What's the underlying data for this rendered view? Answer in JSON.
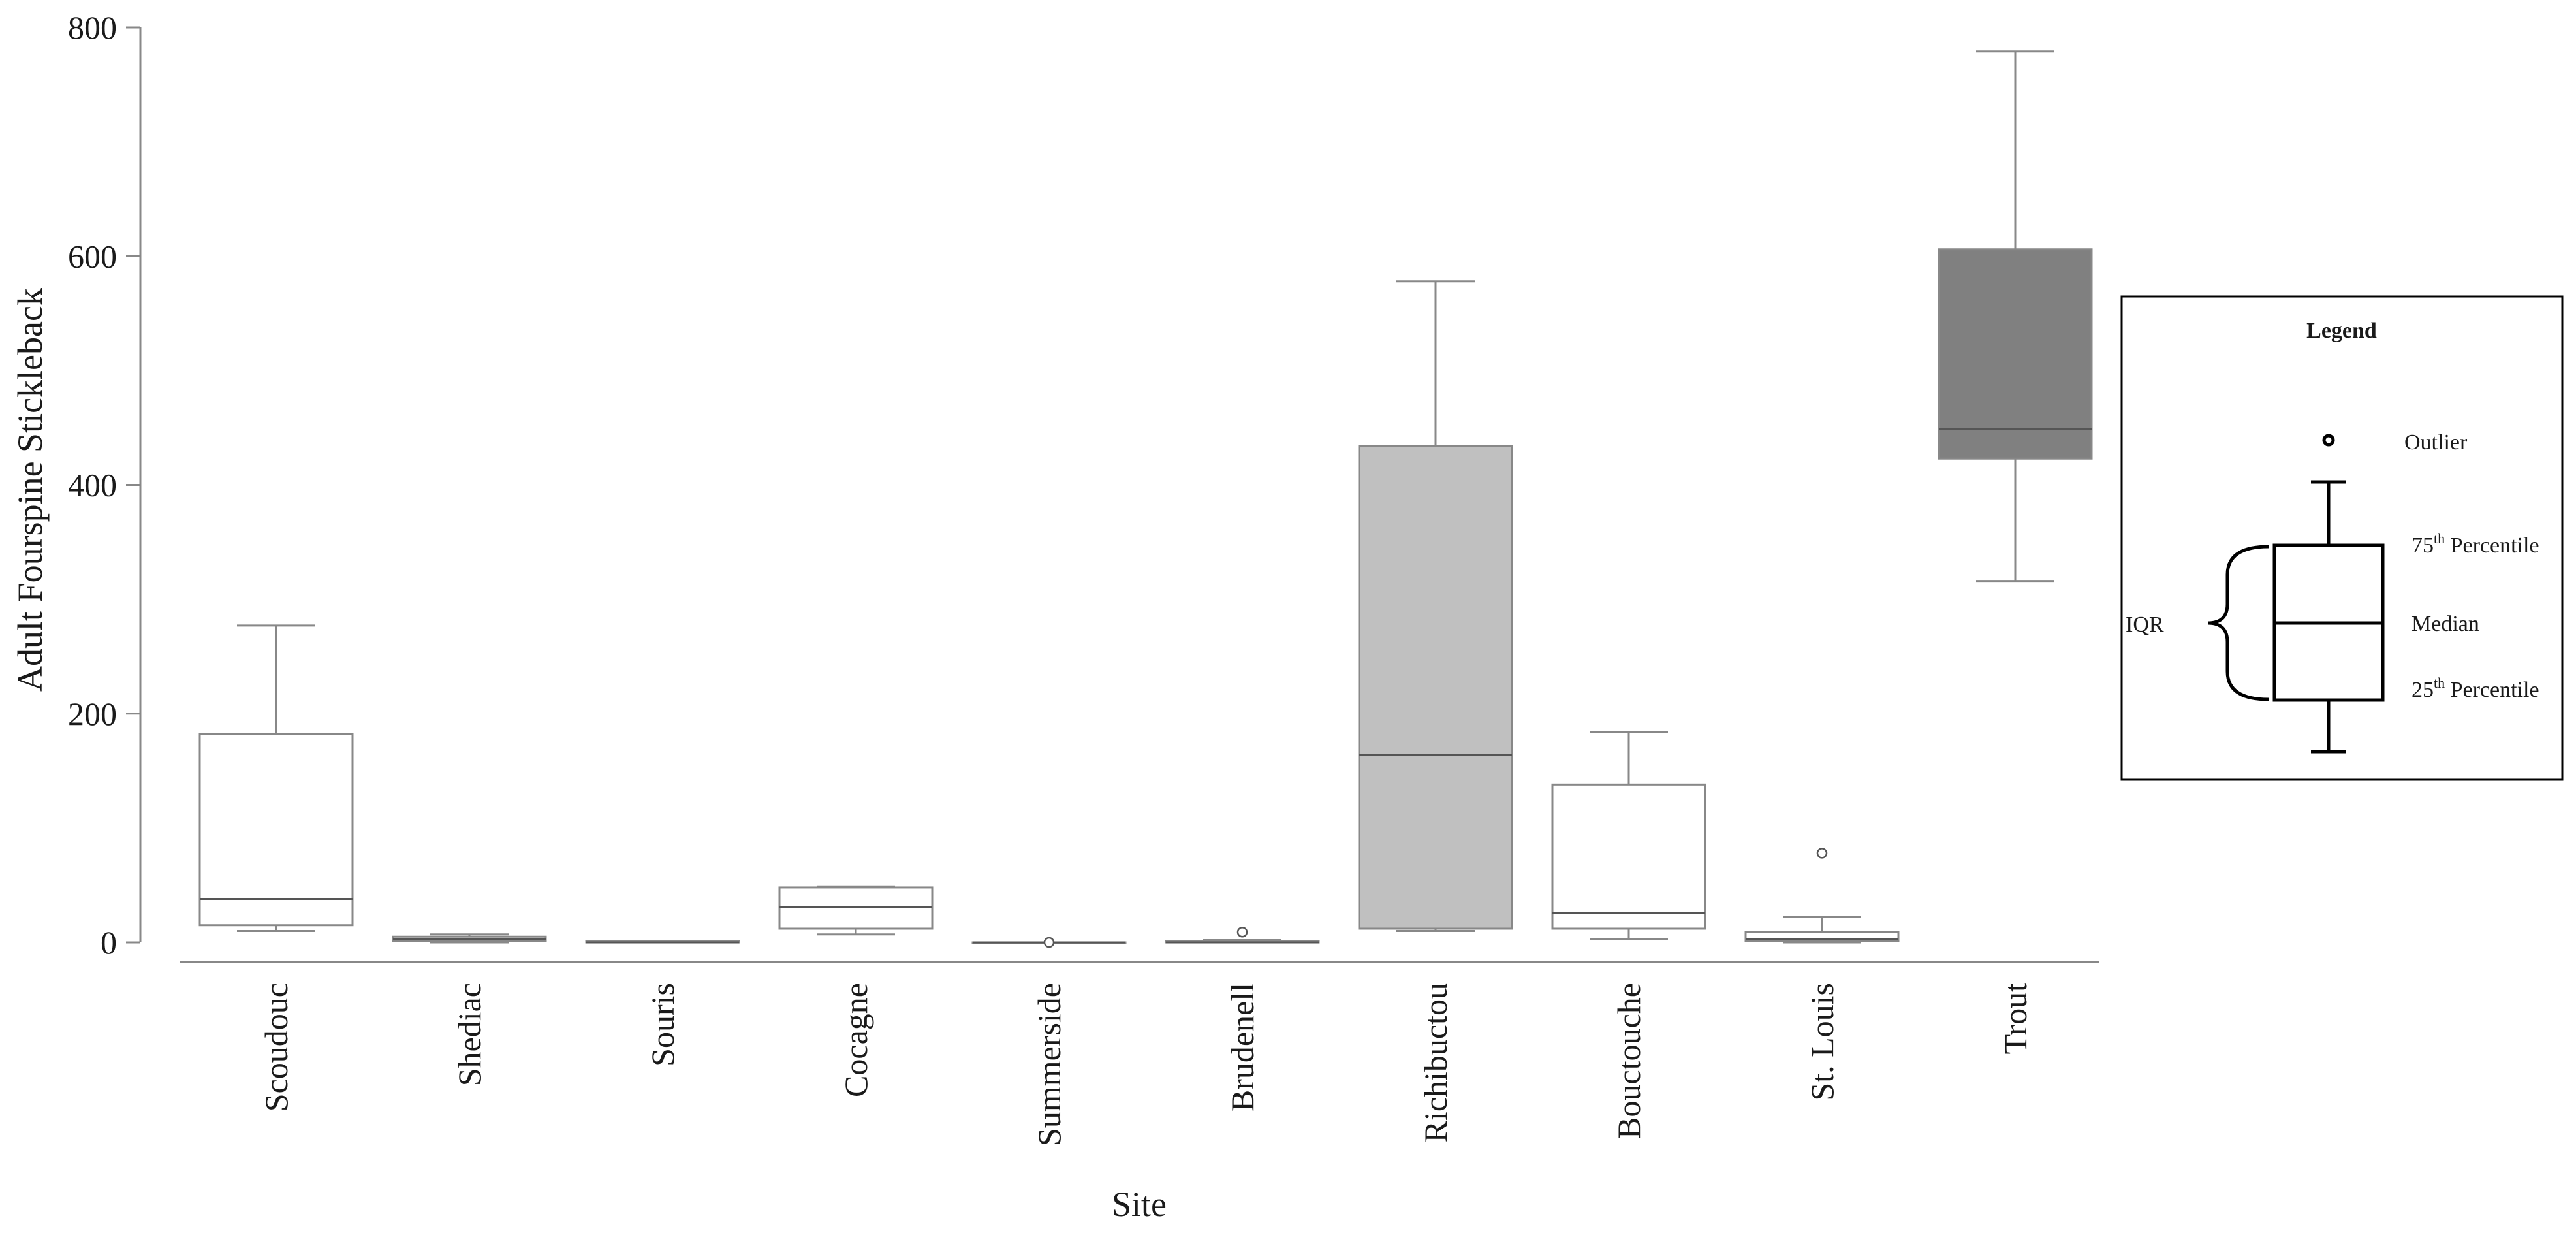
{
  "chart_data": {
    "type": "box",
    "xlabel": "Site",
    "ylabel": "Adult Fourspine Stickleback",
    "ylim": [
      0,
      800
    ],
    "yticks": [
      0,
      200,
      400,
      600,
      800
    ],
    "grid": false,
    "legend_position": "right",
    "categories": [
      "Scoudouc",
      "Shediac",
      "Souris",
      "Cocagne",
      "Summerside",
      "Brudenell",
      "Richibuctou",
      "Bouctouche",
      "St. Louis",
      "Trout"
    ],
    "boxes": [
      {
        "category": "Scoudouc",
        "min": 10,
        "q1": 15,
        "median": 38,
        "q3": 182,
        "max": 277,
        "outliers": [],
        "fill": "#ffffff"
      },
      {
        "category": "Shediac",
        "min": 0,
        "q1": 1,
        "median": 3,
        "q3": 5,
        "max": 7,
        "outliers": [],
        "fill": "#ffffff"
      },
      {
        "category": "Souris",
        "min": 0,
        "q1": 0,
        "median": 0,
        "q3": 1,
        "max": 1,
        "outliers": [],
        "fill": "#ffffff"
      },
      {
        "category": "Cocagne",
        "min": 7,
        "q1": 12,
        "median": 31,
        "q3": 48,
        "max": 49,
        "outliers": [],
        "fill": "#ffffff"
      },
      {
        "category": "Summerside",
        "min": 0,
        "q1": 0,
        "median": 0,
        "q3": 0,
        "max": 0,
        "outliers": [
          0
        ],
        "fill": "#ffffff"
      },
      {
        "category": "Brudenell",
        "min": 0,
        "q1": 0,
        "median": 0,
        "q3": 1,
        "max": 2,
        "outliers": [
          9
        ],
        "fill": "#ffffff"
      },
      {
        "category": "Richibuctou",
        "min": 10,
        "q1": 12,
        "median": 164,
        "q3": 434,
        "max": 578,
        "outliers": [],
        "fill": "#c0c0c0"
      },
      {
        "category": "Bouctouche",
        "min": 3,
        "q1": 12,
        "median": 26,
        "q3": 138,
        "max": 184,
        "outliers": [],
        "fill": "#ffffff"
      },
      {
        "category": "St. Louis",
        "min": 0,
        "q1": 1,
        "median": 3,
        "q3": 9,
        "max": 22,
        "outliers": [
          78
        ],
        "fill": "#ffffff"
      },
      {
        "category": "Trout",
        "min": 316,
        "q1": 423,
        "median": 449,
        "q3": 606,
        "max": 779,
        "outliers": [],
        "fill": "#808080"
      }
    ],
    "legend": {
      "title": "Legend",
      "outlier_label": "Outlier",
      "q3_label_base": "75",
      "q3_label_sup": "th",
      "q3_label_rest": " Percentile",
      "median_label": "Median",
      "q1_label_base": "25",
      "q1_label_sup": "th",
      "q1_label_rest": " Percentile",
      "iqr_label": "IQR"
    }
  }
}
